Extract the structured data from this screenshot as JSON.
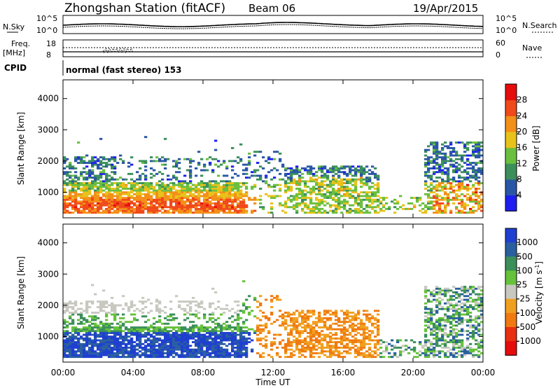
{
  "header": {
    "station": "Zhongshan Station (fitACF)",
    "beam": "Beam 06",
    "date": "19/Apr/2015"
  },
  "top_panels": {
    "nsky_label": "N.Sky",
    "nsearch_label": "N.Search",
    "noise_left_ticks": [
      "10^5",
      "10^0"
    ],
    "noise_right_ticks": [
      "10^5",
      "10^0"
    ],
    "freq_label": "Freq.",
    "freq_unit": "[MHz]",
    "freq_ticks": [
      "18",
      "8"
    ],
    "nave_label": "Nave",
    "nave_ticks": [
      "60",
      "0"
    ],
    "cpid_label": "CPID",
    "cpid_text": "normal (fast stereo) 153"
  },
  "chart_data": [
    {
      "type": "heatmap",
      "ylabel": "Slant Range [km]",
      "xlabel": "Time UT",
      "x_ticks": [
        "00:00",
        "04:00",
        "08:00",
        "12:00",
        "16:00",
        "20:00",
        "00:00"
      ],
      "y_ticks": [
        1000,
        2000,
        3000,
        4000
      ],
      "ylim": [
        180,
        4600
      ],
      "xlim_hours": [
        0,
        24
      ],
      "colorbar": {
        "label": "Power [dB]",
        "ticks": [
          "4",
          "8",
          "12",
          "16",
          "20",
          "24",
          "28"
        ],
        "colors": [
          "#1e1ef0",
          "#2a56a6",
          "#3b8f5a",
          "#6abf3f",
          "#e8c21a",
          "#f39019",
          "#f04a1a",
          "#e60c0c"
        ]
      }
    },
    {
      "type": "heatmap",
      "ylabel": "Slant Range [km]",
      "xlabel": "Time UT",
      "x_ticks": [
        "00:00",
        "04:00",
        "08:00",
        "12:00",
        "16:00",
        "20:00",
        "00:00"
      ],
      "y_ticks": [
        1000,
        2000,
        3000,
        4000
      ],
      "ylim": [
        180,
        4600
      ],
      "xlim_hours": [
        0,
        24
      ],
      "colorbar": {
        "label": "Velocity [m s-1]",
        "ticks": [
          "1000",
          "500",
          "100",
          "25",
          "-25",
          "-100",
          "-500",
          "-1000"
        ],
        "colors": [
          "#1f3fd0",
          "#2a5fa0",
          "#3b8f5a",
          "#66c23a",
          "#c8c8c0",
          "#f0a020",
          "#f07a10",
          "#e83010",
          "#e60c0c"
        ]
      }
    }
  ],
  "xaxis": {
    "title": "Time UT",
    "ticks": [
      "00:00",
      "04:00",
      "08:00",
      "12:00",
      "16:00",
      "20:00",
      "00:00"
    ]
  }
}
